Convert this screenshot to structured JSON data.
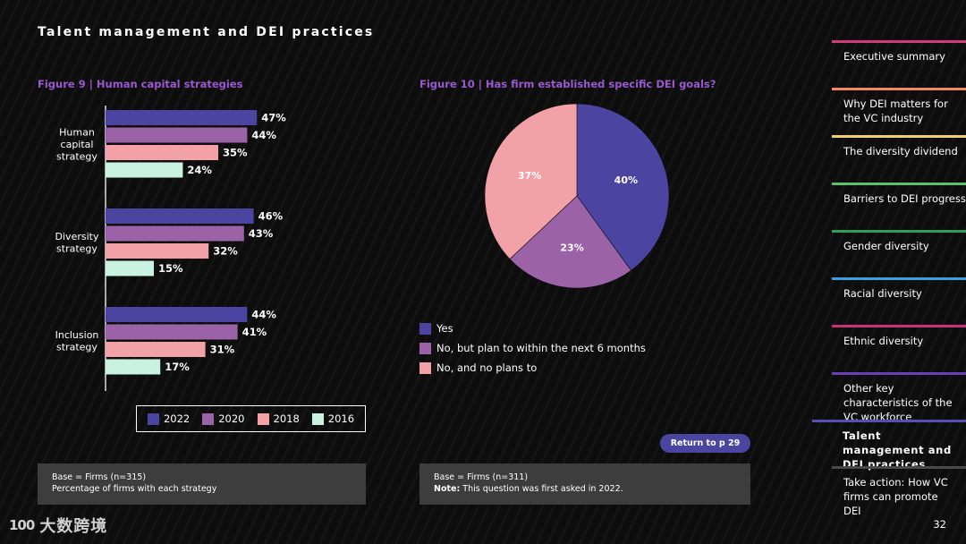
{
  "page": {
    "title": "Talent management and DEI practices",
    "page_number": "32",
    "return_button": "Return to p 29",
    "watermark": "大数跨境",
    "watermark_mark": "100"
  },
  "colors": {
    "y2022": "#4b44a0",
    "y2020": "#9b62a8",
    "y2018": "#f2a1a6",
    "y2016": "#c9f2e0",
    "pie_yes": "#4b44a0",
    "pie_plan": "#9b62a8",
    "pie_noplan": "#f2a1a6",
    "figure_title": "#9b59d0"
  },
  "fig9": {
    "title": "Figure 9  | Human capital strategies",
    "note_line1": "Base = Firms (n=315)",
    "note_line2": "Percentage of firms with each strategy"
  },
  "fig10": {
    "title": "Figure 10  | Has firm established specific DEI goals?",
    "note_line1": "Base = Firms (n=311)",
    "note_bold": "Note:",
    "note_rest": " This question was first asked in 2022."
  },
  "chart_data": [
    {
      "type": "bar",
      "orientation": "horizontal",
      "title": "Figure 9  | Human capital strategies",
      "categories": [
        [
          "Human",
          "capital",
          "strategy"
        ],
        [
          "Diversity",
          "strategy"
        ],
        [
          "Inclusion",
          "strategy"
        ]
      ],
      "series": [
        {
          "name": "2022",
          "values": [
            47,
            46,
            44
          ]
        },
        {
          "name": "2020",
          "values": [
            44,
            43,
            41
          ]
        },
        {
          "name": "2018",
          "values": [
            35,
            32,
            31
          ]
        },
        {
          "name": "2016",
          "values": [
            24,
            15,
            17
          ]
        }
      ],
      "value_suffix": "%",
      "xlim": [
        0,
        100
      ],
      "legend": "bottom",
      "grid": false
    },
    {
      "type": "pie",
      "title": "Figure 10  | Has firm established specific DEI goals?",
      "labels": [
        "Yes",
        "No, but plan to within the next 6 months",
        "No, and no plans to"
      ],
      "values": [
        40,
        23,
        37
      ],
      "value_suffix": "%",
      "legend": "bottom-left"
    }
  ],
  "nav": [
    {
      "label": "Executive summary",
      "color": "#d23a7e"
    },
    {
      "label": "Why DEI matters for the VC industry",
      "color": "#f08a5d"
    },
    {
      "label": "The diversity dividend",
      "color": "#f2d16b"
    },
    {
      "label": "Barriers to DEI progress",
      "color": "#5cc16b"
    },
    {
      "label": "Gender diversity",
      "color": "#2f9e5b"
    },
    {
      "label": "Racial diversity",
      "color": "#3aa0e0"
    },
    {
      "label": "Ethnic diversity",
      "color": "#c8327a"
    },
    {
      "label": "Other key characteristics of the VC workforce",
      "color": "#6a3fb5"
    },
    {
      "label": "Talent management and DEI practices",
      "color": "#5a4fb0"
    },
    {
      "label": "Take action: How VC firms can promote DEI",
      "color": "#4a4a4a"
    }
  ]
}
